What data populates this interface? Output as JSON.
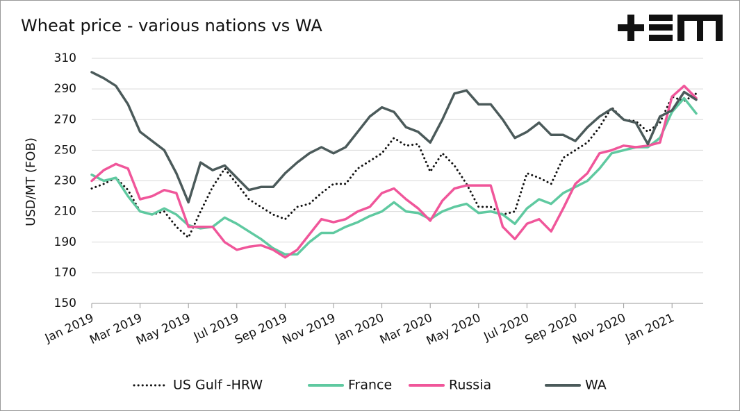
{
  "chart_data": {
    "type": "line",
    "title": "Wheat price - various nations vs WA",
    "y_label": "USD/MT (FOB)",
    "categories": [
      "Jan 2019",
      null,
      null,
      null,
      "Mar 2019",
      null,
      null,
      null,
      "May 2019",
      null,
      null,
      null,
      "Jul 2019",
      null,
      null,
      null,
      "Sep 2019",
      null,
      null,
      null,
      "Nov 2019",
      null,
      null,
      null,
      "Jan 2020",
      null,
      null,
      null,
      "Mar 2020",
      null,
      null,
      null,
      "May 2020",
      null,
      null,
      null,
      "Jul 2020",
      null,
      null,
      null,
      "Sep 2020",
      null,
      null,
      null,
      "Nov 2020",
      null,
      null,
      null,
      "Jan 2021",
      null,
      null
    ],
    "series": [
      {
        "name": "US Gulf -HRW",
        "color": "#111111",
        "dash": "dotted",
        "values": [
          225,
          228,
          232,
          224,
          210,
          208,
          210,
          200,
          193,
          210,
          226,
          238,
          228,
          218,
          213,
          208,
          205,
          213,
          215,
          222,
          228,
          228,
          238,
          243,
          248,
          258,
          253,
          254,
          236,
          248,
          240,
          228,
          213,
          213,
          208,
          210,
          235,
          232,
          228,
          245,
          250,
          255,
          265,
          278,
          270,
          269,
          262,
          268,
          285,
          282,
          287
        ]
      },
      {
        "name": "France",
        "color": "#5fc9a0",
        "dash": "solid",
        "values": [
          234,
          230,
          232,
          220,
          210,
          208,
          212,
          208,
          201,
          199,
          200,
          206,
          202,
          197,
          192,
          186,
          182,
          182,
          190,
          196,
          196,
          200,
          203,
          207,
          210,
          216,
          210,
          209,
          205,
          210,
          213,
          215,
          209,
          210,
          208,
          202,
          212,
          218,
          215,
          222,
          226,
          230,
          238,
          248,
          250,
          252,
          252,
          258,
          275,
          284,
          274
        ]
      },
      {
        "name": "Russia",
        "color": "#f0569a",
        "dash": "solid",
        "values": [
          230,
          237,
          241,
          238,
          218,
          220,
          224,
          222,
          200,
          200,
          200,
          190,
          185,
          187,
          188,
          185,
          180,
          185,
          195,
          205,
          203,
          205,
          210,
          213,
          222,
          225,
          218,
          212,
          204,
          217,
          225,
          227,
          227,
          227,
          200,
          192,
          202,
          205,
          197,
          212,
          228,
          235,
          248,
          250,
          253,
          252,
          253,
          255,
          285,
          292,
          284
        ]
      },
      {
        "name": "WA",
        "color": "#4b5a5a",
        "dash": "solid",
        "values": [
          301,
          297,
          292,
          280,
          262,
          256,
          250,
          235,
          216,
          242,
          237,
          240,
          232,
          224,
          226,
          226,
          235,
          242,
          248,
          252,
          248,
          252,
          262,
          272,
          278,
          275,
          265,
          262,
          255,
          270,
          287,
          289,
          280,
          280,
          270,
          258,
          262,
          268,
          260,
          260,
          256,
          265,
          272,
          277,
          270,
          268,
          254,
          272,
          276,
          288,
          283
        ]
      }
    ],
    "ylim": [
      150,
      310
    ],
    "yticks": [
      150,
      170,
      190,
      210,
      230,
      250,
      270,
      290,
      310
    ],
    "grid": true
  }
}
